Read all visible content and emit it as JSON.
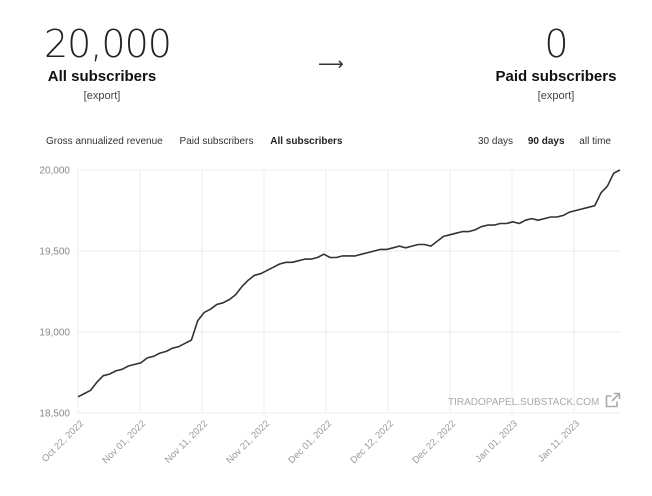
{
  "stats": {
    "left": {
      "value": "20,000",
      "label": "All subscribers",
      "export": "[export]"
    },
    "right": {
      "value": "0",
      "label": "Paid subscribers",
      "export": "[export]"
    },
    "arrow": "⟶"
  },
  "metric_tabs": [
    "Gross annualized revenue",
    "Paid subscribers",
    "All subscribers"
  ],
  "metric_active": "All subscribers",
  "range_tabs": [
    "30 days",
    "90 days",
    "all time"
  ],
  "range_active": "90 days",
  "watermark": "TIRADOPAPEL.SUBSTACK.COM",
  "colors": {
    "line": "#333333",
    "grid": "#ececec"
  },
  "chart_data": {
    "type": "line",
    "series": [
      {
        "values": [
          18600,
          18620,
          18640,
          18690,
          18730,
          18740,
          18760,
          18770,
          18790,
          18800,
          18810,
          18840,
          18850,
          18870,
          18880,
          18900,
          18910,
          18930,
          18950,
          19070,
          19120,
          19140,
          19170,
          19180,
          19200,
          19230,
          19280,
          19320,
          19350,
          19360,
          19380,
          19400,
          19420,
          19430,
          19430,
          19440,
          19450,
          19450,
          19460,
          19480,
          19460,
          19460,
          19470,
          19470,
          19470,
          19480,
          19490,
          19500,
          19510,
          19510,
          19520,
          19530,
          19520,
          19530,
          19540,
          19540,
          19530,
          19560,
          19590,
          19600,
          19610,
          19620,
          19620,
          19630,
          19650,
          19660,
          19660,
          19670,
          19670,
          19680,
          19670,
          19690,
          19700,
          19690,
          19700,
          19710,
          19710,
          19720,
          19740,
          19750,
          19760,
          19770,
          19780,
          19860,
          19900,
          19980,
          20000
        ]
      }
    ],
    "x_tick_labels": [
      "Oct 22, 2022",
      "Nov 01, 2022",
      "Nov 11, 2022",
      "Nov 21, 2022",
      "Dec 01, 2022",
      "Dec 12, 2022",
      "Dec 22, 2022",
      "Jan 01, 2023",
      "Jan 11, 2023"
    ],
    "y_ticks": [
      18500,
      19000,
      19500,
      20000
    ],
    "y_tick_labels": [
      "18,500",
      "19,000",
      "19,500",
      "20,000"
    ],
    "ylim": [
      18500,
      20000
    ],
    "grid": true
  }
}
